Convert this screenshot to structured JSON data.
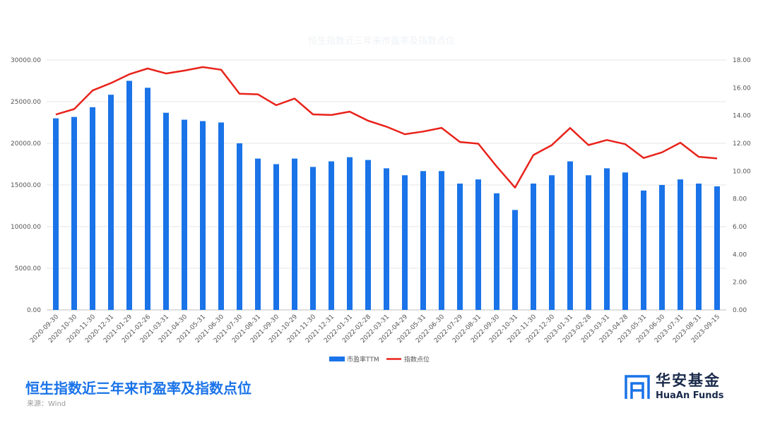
{
  "chart_data": {
    "type": "bar+line",
    "title": "恒生指数近三年来市盈率及指数点位",
    "source": "来源：Wind",
    "categories": [
      "2020-09-30",
      "2020-10-30",
      "2020-11-30",
      "2020-12-31",
      "2021-01-29",
      "2021-02-26",
      "2021-03-31",
      "2021-04-30",
      "2021-05-31",
      "2021-06-30",
      "2021-07-30",
      "2021-08-31",
      "2021-09-30",
      "2021-10-29",
      "2021-11-30",
      "2021-12-31",
      "2022-01-31",
      "2022-02-28",
      "2022-03-31",
      "2022-04-29",
      "2022-05-31",
      "2022-06-30",
      "2022-07-29",
      "2022-08-31",
      "2022-09-30",
      "2022-10-31",
      "2022-11-30",
      "2022-12-30",
      "2023-01-31",
      "2023-02-28",
      "2023-03-31",
      "2023-04-28",
      "2023-05-31",
      "2023-06-30",
      "2023-07-31",
      "2023-08-31",
      "2023-09-15"
    ],
    "series": [
      {
        "name": "市盈率TTM",
        "type": "bar",
        "axis": "right",
        "color": "#1a73e8",
        "values": [
          13.8,
          13.9,
          14.6,
          15.5,
          16.5,
          16.0,
          14.2,
          13.7,
          13.6,
          13.5,
          12.0,
          10.9,
          10.5,
          10.9,
          10.3,
          10.7,
          11.0,
          10.8,
          10.2,
          9.7,
          10.0,
          10.0,
          9.1,
          9.4,
          8.4,
          7.2,
          9.1,
          9.7,
          10.7,
          9.7,
          10.2,
          9.9,
          8.6,
          9.0,
          9.4,
          9.1,
          8.9
        ]
      },
      {
        "name": "指数点位",
        "type": "line",
        "axis": "left",
        "color": "#e8231b",
        "values": [
          23459,
          24107,
          26341,
          27231,
          28284,
          28980,
          28378,
          28725,
          29152,
          28828,
          25961,
          25878,
          24576,
          25377,
          23475,
          23398,
          23802,
          22713,
          21997,
          21089,
          21415,
          21860,
          20157,
          19954,
          17223,
          14687,
          18597,
          19781,
          21842,
          19786,
          20400,
          19895,
          18234,
          18916,
          20079,
          18382,
          18183
        ]
      }
    ],
    "yaxis_left": {
      "min": 0,
      "max": 30000,
      "step": 5000,
      "tick_labels": [
        "0.00",
        "5000.00",
        "10000.00",
        "15000.00",
        "20000.00",
        "25000.00",
        "30000.00"
      ]
    },
    "yaxis_right": {
      "min": 0,
      "max": 18,
      "step": 2,
      "tick_labels": [
        "0.00",
        "2.00",
        "4.00",
        "6.00",
        "8.00",
        "10.00",
        "12.00",
        "14.00",
        "16.00",
        "18.00"
      ]
    },
    "grid": true,
    "legend_position": "bottom-center"
  },
  "branding": {
    "name_cn": "华安基金",
    "name_en": "HuaAn Funds",
    "color": "#1a2a4a"
  }
}
